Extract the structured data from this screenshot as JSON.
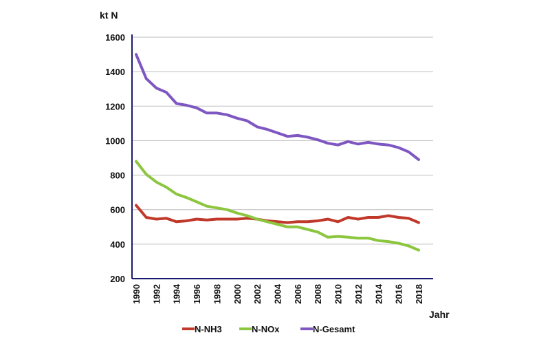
{
  "chart_data": {
    "type": "line",
    "ylabel": "kt N",
    "xlabel": "Jahr",
    "ylim": [
      200,
      1600
    ],
    "yticks": [
      "200",
      "400",
      "600",
      "800",
      "1000",
      "1200",
      "1400",
      "1600"
    ],
    "xlim": [
      1990,
      2018
    ],
    "xticks": [
      "1990",
      "1992",
      "1994",
      "1996",
      "1998",
      "2000",
      "2002",
      "2004",
      "2006",
      "2008",
      "2010",
      "2012",
      "2014",
      "2016",
      "2018"
    ],
    "grid": true,
    "legend": "bottom",
    "x": [
      1990,
      1991,
      1992,
      1993,
      1994,
      1995,
      1996,
      1997,
      1998,
      1999,
      2000,
      2001,
      2002,
      2003,
      2004,
      2005,
      2006,
      2007,
      2008,
      2009,
      2010,
      2011,
      2012,
      2013,
      2014,
      2015,
      2016,
      2017,
      2018
    ],
    "series": [
      {
        "name": "N-NH3",
        "color": "#c0392b",
        "values": [
          625,
          555,
          545,
          550,
          530,
          535,
          545,
          540,
          545,
          545,
          545,
          550,
          545,
          535,
          530,
          525,
          530,
          530,
          535,
          545,
          530,
          555,
          545,
          555,
          555,
          565,
          555,
          550,
          525
        ]
      },
      {
        "name": "N-NOx",
        "color": "#8cc63f",
        "values": [
          880,
          805,
          760,
          730,
          690,
          670,
          645,
          620,
          610,
          600,
          580,
          565,
          545,
          530,
          515,
          500,
          500,
          485,
          470,
          440,
          445,
          440,
          435,
          435,
          420,
          415,
          405,
          390,
          365
        ]
      },
      {
        "name": "N-Gesamt",
        "color": "#7e57c2",
        "values": [
          1500,
          1360,
          1305,
          1280,
          1215,
          1205,
          1190,
          1160,
          1160,
          1150,
          1130,
          1115,
          1080,
          1065,
          1045,
          1025,
          1030,
          1020,
          1005,
          985,
          975,
          995,
          980,
          990,
          980,
          975,
          960,
          935,
          890
        ]
      }
    ]
  }
}
